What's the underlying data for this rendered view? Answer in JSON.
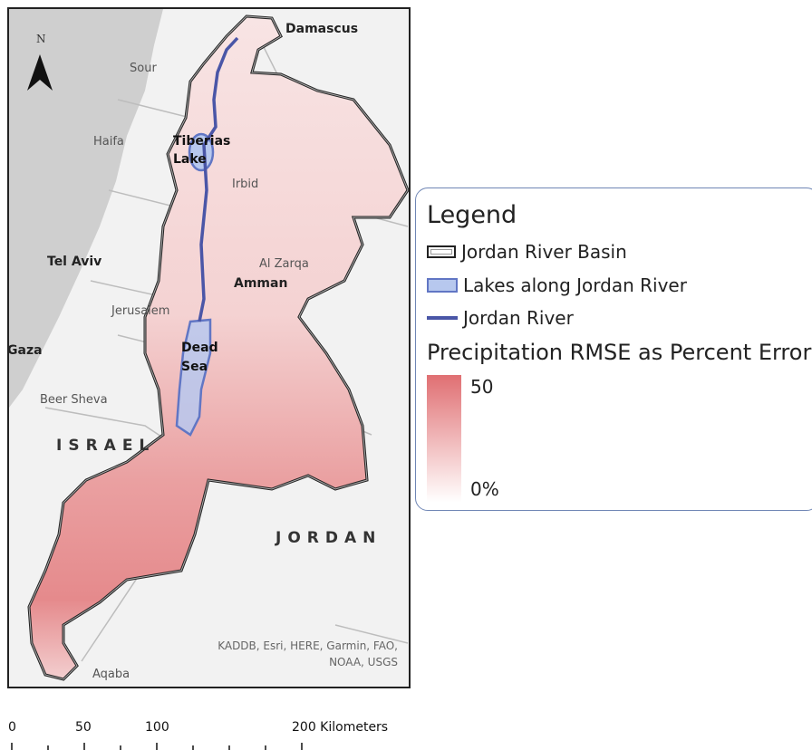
{
  "map": {
    "places": {
      "damascus": "Damascus",
      "sour": "Sour",
      "haifa": "Haifa",
      "irbid": "Irbid",
      "tel_aviv": "Tel Aviv",
      "al_zarqa": "Al Zarqa",
      "amman": "Amman",
      "jerusalem": "Jerusalem",
      "gaza": "Gaza",
      "beer_sheva": "Beer Sheva",
      "aqaba": "Aqaba"
    },
    "lakes": {
      "tiberias_line1": "Tiberias",
      "tiberias_line2": "Lake",
      "dead_sea_line1": "Dead",
      "dead_sea_line2": "Sea"
    },
    "countries": {
      "israel": "ISRAEL",
      "jordan": "JORDAN"
    },
    "north_arrow": "N",
    "credit_line1": "KADDB, Esri, HERE, Garmin, FAO,",
    "credit_line2": "NOAA, USGS"
  },
  "legend": {
    "title": "Legend",
    "items": [
      {
        "label": "Jordan River Basin",
        "symbol": "basin-outline"
      },
      {
        "label": "Lakes along Jordan River",
        "symbol": "lake-fill"
      },
      {
        "label": "Jordan River",
        "symbol": "river-line"
      }
    ],
    "gradient_title": "Precipitation RMSE as Percent Error",
    "gradient_max": "50",
    "gradient_min": "0%",
    "colors": {
      "max": "#e06f72",
      "min": "#ffffff",
      "river": "#4a56a7",
      "lake": "#b7c8ee",
      "frame": "#6f86b5"
    }
  },
  "scalebar": {
    "labels": [
      "0",
      "50",
      "100",
      "200 Kilometers"
    ]
  }
}
